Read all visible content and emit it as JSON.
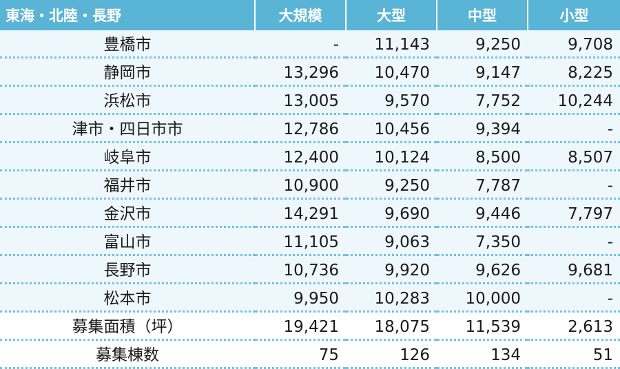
{
  "headers": [
    "東海・北陸・長野",
    "大規模",
    "大型",
    "中型",
    "小型"
  ],
  "rows": [
    {
      "name": "豊橋市",
      "values": [
        "-",
        "11,143",
        "9,250",
        "9,708"
      ]
    },
    {
      "name": "静岡市",
      "values": [
        "13,296",
        "10,470",
        "9,147",
        "8,225"
      ]
    },
    {
      "name": "浜松市",
      "values": [
        "13,005",
        "9,570",
        "7,752",
        "10,244"
      ]
    },
    {
      "name": "津市・四日市市",
      "values": [
        "12,786",
        "10,456",
        "9,394",
        "-"
      ]
    },
    {
      "name": "岐阜市",
      "values": [
        "12,400",
        "10,124",
        "8,500",
        "8,507"
      ]
    },
    {
      "name": "福井市",
      "values": [
        "10,900",
        "9,250",
        "7,787",
        "-"
      ]
    },
    {
      "name": "金沢市",
      "values": [
        "14,291",
        "9,690",
        "9,446",
        "7,797"
      ]
    },
    {
      "name": "富山市",
      "values": [
        "11,105",
        "9,063",
        "7,350",
        "-"
      ]
    },
    {
      "name": "長野市",
      "values": [
        "10,736",
        "9,920",
        "9,626",
        "9,681"
      ]
    },
    {
      "name": "松本市",
      "values": [
        "9,950",
        "10,283",
        "10,000",
        "-"
      ]
    }
  ],
  "summary_rows": [
    {
      "name": "募集面積（坪）",
      "values": [
        "19,421",
        "18,075",
        "11,539",
        "2,613"
      ]
    },
    {
      "name": "募集棟数",
      "values": [
        "75",
        "126",
        "134",
        "51"
      ]
    }
  ]
}
